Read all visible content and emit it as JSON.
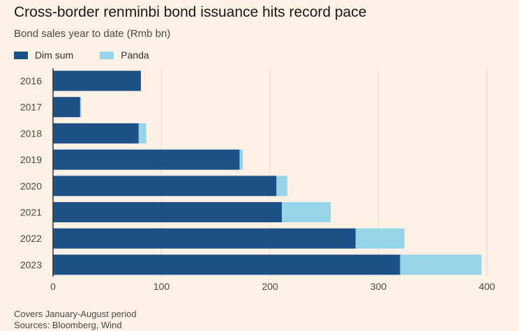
{
  "header": {
    "title": "Cross-border renminbi bond issuance hits record pace",
    "subtitle": "Bond sales year to date (Rmb bn)"
  },
  "footer": {
    "note": "Covers January-August period",
    "sources": "Sources: Bloomberg, Wind"
  },
  "colors": {
    "dim_sum": "#1f5189",
    "panda": "#96d4ea",
    "grid": "#e8dccf",
    "background": "#fdf1e6"
  },
  "chart_data": {
    "type": "bar",
    "orientation": "horizontal",
    "stacked": true,
    "title": "Cross-border renminbi bond issuance hits record pace",
    "subtitle": "Bond sales year to date (Rmb bn)",
    "categories": [
      "2016",
      "2017",
      "2018",
      "2019",
      "2020",
      "2021",
      "2022",
      "2023"
    ],
    "series": [
      {
        "name": "Dim sum",
        "values": [
          81,
          25,
          79,
          172,
          206,
          211,
          279,
          320
        ]
      },
      {
        "name": "Panda",
        "values": [
          0,
          1,
          7,
          3,
          10,
          45,
          45,
          75
        ]
      }
    ],
    "xlim": [
      0,
      400
    ],
    "xticks": [
      0,
      100,
      200,
      300,
      400
    ],
    "xlabel": "",
    "ylabel": "",
    "grid": "vertical",
    "legend": "top-left"
  }
}
